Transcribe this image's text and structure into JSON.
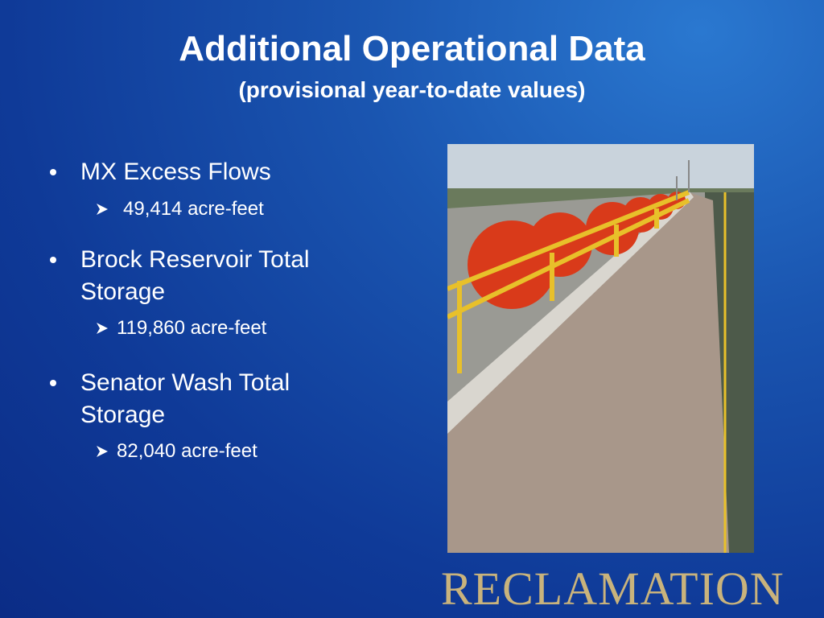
{
  "slide": {
    "title": "Additional Operational Data",
    "subtitle": "(provisional year-to-date values)",
    "bullets": [
      {
        "text": "MX Excess Flows",
        "sub": "49,414 acre-feet"
      },
      {
        "text": "Brock Reservoir Total Storage",
        "sub": "119,860 acre-feet"
      },
      {
        "text": "Senator Wash Total Storage",
        "sub": "82,040 acre-feet"
      }
    ],
    "logo": "RECLAMATION"
  }
}
